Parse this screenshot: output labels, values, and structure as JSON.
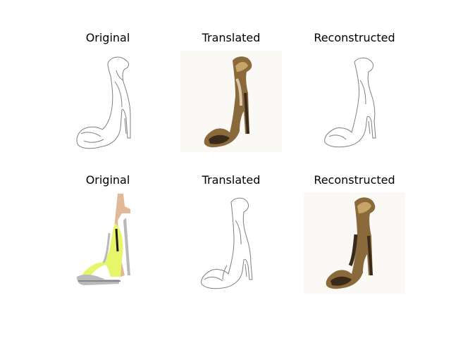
{
  "grid": {
    "rows": [
      {
        "titles": [
          "Original",
          "Translated",
          "Reconstructed"
        ],
        "panel_kinds": [
          "sketch",
          "photo-brown",
          "sketch"
        ]
      },
      {
        "titles": [
          "Original",
          "Translated",
          "Reconstructed"
        ],
        "panel_kinds": [
          "photo-green",
          "sketch",
          "photo-brown"
        ]
      }
    ]
  },
  "colors": {
    "sketch_line": "#7f7f7f",
    "brown_dark": "#3a2a1a",
    "brown_mid": "#8a6a3a",
    "brown_light": "#c9a46a",
    "strap_tan": "#e2b998",
    "insole_lime": "#e6f56a",
    "metal_silver": "#b9b9b9"
  }
}
